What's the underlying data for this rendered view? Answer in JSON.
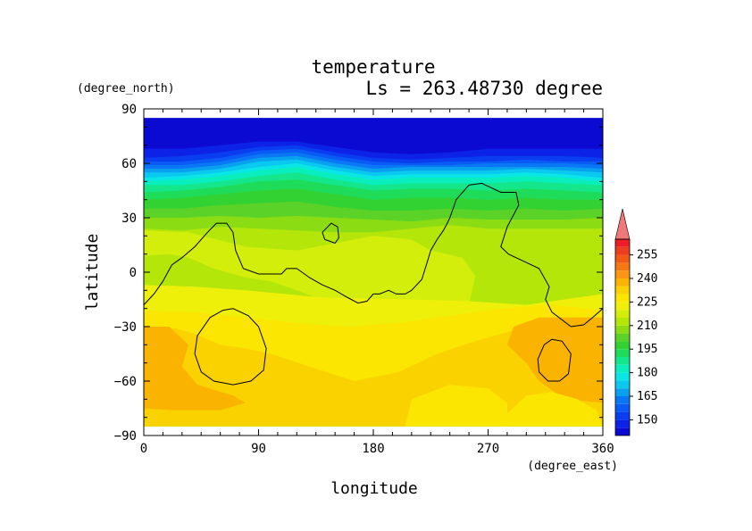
{
  "chart_data": {
    "type": "heatmap",
    "title": "temperature",
    "subtitle": "Ls = 263.48730 degree",
    "xlabel": "longitude",
    "ylabel": "latitude",
    "x_unit": "(degree_east)",
    "y_unit": "(degree_north)",
    "xlim": [
      0,
      360
    ],
    "ylim": [
      -90,
      90
    ],
    "x_ticks": [
      0,
      90,
      180,
      270,
      360
    ],
    "y_ticks": [
      90,
      60,
      30,
      0,
      -30,
      -60,
      -90
    ],
    "x_tick_labels": [
      "0",
      "90",
      "180",
      "270",
      "360"
    ],
    "y_tick_labels": [
      "90",
      "60",
      "30",
      "0",
      "−30",
      "−60",
      "−90"
    ],
    "data_extent": {
      "lon": [
        0,
        360
      ],
      "lat": [
        -85,
        85
      ]
    },
    "colorbar": {
      "tick_values": [
        150,
        165,
        180,
        195,
        210,
        225,
        240,
        255
      ],
      "tick_labels": [
        "150",
        "165",
        "180",
        "195",
        "210",
        "225",
        "240",
        "255"
      ],
      "levels": [
        140,
        145,
        150,
        155,
        160,
        165,
        170,
        175,
        180,
        185,
        190,
        195,
        200,
        205,
        210,
        215,
        220,
        225,
        230,
        235,
        240,
        245,
        250,
        255,
        260,
        265
      ],
      "colors": [
        "#0a0ad2",
        "#0c22e6",
        "#0a3cf0",
        "#0a5af5",
        "#0a78f5",
        "#0aa0f0",
        "#0ac8f0",
        "#0ae6e6",
        "#0aeebe",
        "#14e68c",
        "#1edc5a",
        "#32d232",
        "#5ad228",
        "#8cdc14",
        "#b4e60a",
        "#d2ee0a",
        "#eef00a",
        "#fae600",
        "#fad200",
        "#fab400",
        "#fa9614",
        "#f57814",
        "#f05a14",
        "#ee3c1e",
        "#ee1e28"
      ],
      "extend_color": "#f07878"
    },
    "band_boundaries": [
      {
        "level": 145,
        "lat": [
          68,
          68,
          70,
          72,
          72,
          69,
          66,
          65,
          66,
          68,
          68,
          68,
          68
        ]
      },
      {
        "level": 150,
        "lat": [
          63,
          64,
          66,
          69,
          70,
          66,
          63,
          62,
          63,
          64,
          64,
          64,
          63
        ]
      },
      {
        "level": 155,
        "lat": [
          61,
          61,
          63,
          67,
          68,
          64,
          61,
          60,
          61,
          61,
          62,
          61,
          61
        ]
      },
      {
        "level": 160,
        "lat": [
          59,
          59,
          61,
          65,
          66,
          62,
          59,
          59,
          59,
          60,
          60,
          60,
          59
        ]
      },
      {
        "level": 165,
        "lat": [
          57,
          57,
          59,
          63,
          64,
          60,
          57,
          58,
          58,
          58,
          58,
          58,
          57
        ]
      },
      {
        "level": 170,
        "lat": [
          55,
          55,
          57,
          61,
          62,
          58,
          55,
          56,
          56,
          56,
          57,
          56,
          55
        ]
      },
      {
        "level": 175,
        "lat": [
          52,
          53,
          55,
          58,
          60,
          56,
          53,
          54,
          54,
          54,
          55,
          54,
          52
        ]
      },
      {
        "level": 180,
        "lat": [
          50,
          51,
          53,
          56,
          58,
          54,
          51,
          52,
          52,
          52,
          53,
          52,
          50
        ]
      },
      {
        "level": 185,
        "lat": [
          48,
          48,
          50,
          53,
          55,
          51,
          48,
          49,
          49,
          49,
          50,
          49,
          48
        ]
      },
      {
        "level": 190,
        "lat": [
          44,
          45,
          47,
          50,
          51,
          48,
          45,
          46,
          46,
          45,
          46,
          45,
          44
        ]
      },
      {
        "level": 195,
        "lat": [
          40,
          41,
          43,
          45,
          46,
          43,
          40,
          41,
          41,
          40,
          41,
          40,
          40
        ]
      },
      {
        "level": 200,
        "lat": [
          35,
          35,
          37,
          38,
          39,
          36,
          34,
          34,
          35,
          34,
          35,
          34,
          35
        ]
      },
      {
        "level": 205,
        "lat": [
          30,
          30,
          31,
          30,
          31,
          30,
          29,
          28,
          30,
          29,
          29,
          29,
          30
        ]
      },
      {
        "level": 210,
        "lat": [
          24,
          23,
          25,
          24,
          23,
          22,
          22,
          24,
          26,
          24,
          24,
          24,
          24
        ]
      }
    ],
    "regions": [
      {
        "level": 215,
        "points": [
          [
            0,
            23
          ],
          [
            35,
            22
          ],
          [
            80,
            14
          ],
          [
            120,
            12
          ],
          [
            150,
            16
          ],
          [
            180,
            20
          ],
          [
            210,
            18
          ],
          [
            225,
            12
          ],
          [
            250,
            8
          ],
          [
            260,
            -2
          ],
          [
            255,
            -18
          ],
          [
            215,
            -24
          ],
          [
            180,
            -22
          ],
          [
            150,
            -18
          ],
          [
            120,
            -10
          ],
          [
            100,
            -5
          ],
          [
            80,
            -3
          ],
          [
            55,
            2
          ],
          [
            35,
            8
          ],
          [
            20,
            10
          ],
          [
            0,
            9
          ]
        ]
      },
      {
        "level": 220,
        "points": [
          [
            0,
            -7
          ],
          [
            40,
            -8
          ],
          [
            80,
            -10
          ],
          [
            140,
            -14
          ],
          [
            210,
            -15
          ],
          [
            255,
            -16
          ],
          [
            300,
            -18
          ],
          [
            340,
            -14
          ],
          [
            360,
            -12
          ],
          [
            360,
            -30
          ],
          [
            0,
            -30
          ]
        ]
      },
      {
        "level": 225,
        "points": [
          [
            0,
            -21
          ],
          [
            40,
            -22
          ],
          [
            80,
            -25
          ],
          [
            120,
            -28
          ],
          [
            160,
            -30
          ],
          [
            200,
            -28
          ],
          [
            240,
            -24
          ],
          [
            280,
            -20
          ],
          [
            320,
            -18
          ],
          [
            360,
            -21
          ],
          [
            360,
            -85
          ],
          [
            0,
            -85
          ]
        ]
      },
      {
        "level": 230,
        "points": [
          [
            0,
            -30
          ],
          [
            25,
            -31
          ],
          [
            40,
            -34
          ],
          [
            60,
            -40
          ],
          [
            80,
            -42
          ],
          [
            100,
            -45
          ],
          [
            130,
            -52
          ],
          [
            165,
            -60
          ],
          [
            200,
            -55
          ],
          [
            230,
            -45
          ],
          [
            260,
            -38
          ],
          [
            290,
            -32
          ],
          [
            320,
            -30
          ],
          [
            360,
            -28
          ],
          [
            360,
            -85
          ],
          [
            0,
            -85
          ]
        ]
      },
      {
        "level": 235,
        "points": [
          [
            0,
            -30
          ],
          [
            20,
            -30
          ],
          [
            35,
            -40
          ],
          [
            30,
            -52
          ],
          [
            42,
            -62
          ],
          [
            70,
            -68
          ],
          [
            80,
            -72
          ],
          [
            60,
            -76
          ],
          [
            20,
            -76
          ],
          [
            0,
            -75
          ]
        ]
      },
      {
        "level": 235,
        "points": [
          [
            360,
            -25
          ],
          [
            310,
            -25
          ],
          [
            290,
            -30
          ],
          [
            285,
            -40
          ],
          [
            300,
            -50
          ],
          [
            310,
            -60
          ],
          [
            330,
            -70
          ],
          [
            360,
            -72
          ]
        ]
      },
      {
        "level": 225,
        "points": [
          [
            285,
            -78
          ],
          [
            300,
            -68
          ],
          [
            320,
            -66
          ],
          [
            340,
            -70
          ],
          [
            355,
            -76
          ],
          [
            360,
            -85
          ],
          [
            280,
            -85
          ]
        ]
      },
      {
        "level": 225,
        "points": [
          [
            210,
            -70
          ],
          [
            240,
            -62
          ],
          [
            270,
            -64
          ],
          [
            285,
            -72
          ],
          [
            285,
            -85
          ],
          [
            205,
            -85
          ]
        ]
      }
    ],
    "contours": [
      {
        "points": [
          [
            0,
            -18
          ],
          [
            8,
            -12
          ],
          [
            15,
            -5
          ],
          [
            22,
            4
          ],
          [
            30,
            8
          ],
          [
            40,
            14
          ],
          [
            50,
            22
          ],
          [
            57,
            27
          ],
          [
            65,
            27
          ],
          [
            70,
            22
          ],
          [
            72,
            12
          ],
          [
            78,
            2
          ],
          [
            90,
            -1
          ],
          [
            100,
            -1
          ],
          [
            108,
            -1
          ],
          [
            112,
            2
          ],
          [
            120,
            2
          ],
          [
            130,
            -3
          ],
          [
            140,
            -7
          ],
          [
            150,
            -10
          ],
          [
            160,
            -14
          ],
          [
            168,
            -17
          ],
          [
            175,
            -16
          ],
          [
            180,
            -12
          ],
          [
            185,
            -12
          ],
          [
            192,
            -10
          ],
          [
            198,
            -12
          ],
          [
            205,
            -12
          ],
          [
            210,
            -10
          ],
          [
            218,
            -4
          ],
          [
            222,
            5
          ],
          [
            225,
            12
          ],
          [
            230,
            18
          ],
          [
            235,
            23
          ],
          [
            238,
            27
          ],
          [
            240,
            30
          ],
          [
            245,
            40
          ],
          [
            255,
            48
          ],
          [
            265,
            49
          ],
          [
            280,
            44
          ],
          [
            292,
            44
          ],
          [
            294,
            37
          ],
          [
            285,
            25
          ],
          [
            280,
            14
          ],
          [
            286,
            10
          ],
          [
            298,
            6
          ],
          [
            310,
            2
          ],
          [
            318,
            -8
          ],
          [
            315,
            -15
          ],
          [
            320,
            -22
          ],
          [
            335,
            -30
          ],
          [
            345,
            -29
          ],
          [
            352,
            -25
          ],
          [
            360,
            -20
          ]
        ]
      },
      {
        "points": [
          [
            70,
            -20
          ],
          [
            82,
            -24
          ],
          [
            90,
            -30
          ],
          [
            96,
            -42
          ],
          [
            94,
            -54
          ],
          [
            84,
            -60
          ],
          [
            70,
            -62
          ],
          [
            55,
            -60
          ],
          [
            45,
            -55
          ],
          [
            40,
            -45
          ],
          [
            42,
            -35
          ],
          [
            52,
            -25
          ],
          [
            62,
            -21
          ],
          [
            70,
            -20
          ]
        ]
      },
      {
        "points": [
          [
            140,
            22
          ],
          [
            147,
            27
          ],
          [
            152,
            25
          ],
          [
            153,
            19
          ],
          [
            150,
            16
          ],
          [
            146,
            17
          ],
          [
            142,
            18
          ],
          [
            140,
            22
          ]
        ]
      },
      {
        "points": [
          [
            320,
            -37
          ],
          [
            328,
            -38
          ],
          [
            335,
            -45
          ],
          [
            333,
            -56
          ],
          [
            326,
            -60
          ],
          [
            317,
            -60
          ],
          [
            310,
            -55
          ],
          [
            309,
            -48
          ],
          [
            314,
            -40
          ],
          [
            320,
            -37
          ]
        ]
      }
    ]
  }
}
